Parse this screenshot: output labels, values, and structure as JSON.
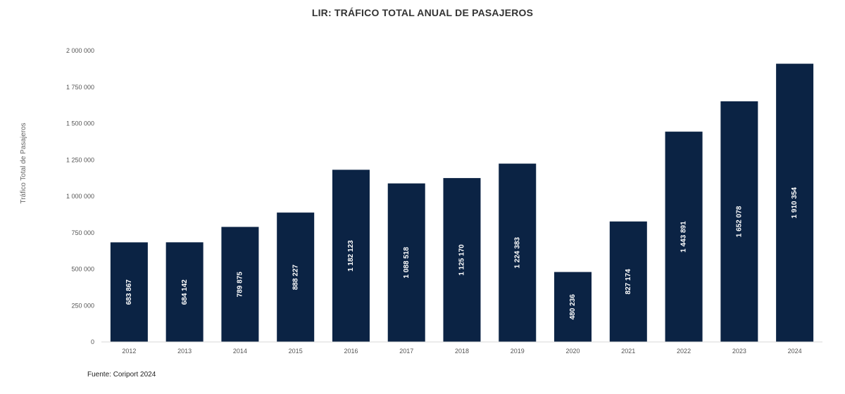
{
  "chart_data": {
    "type": "bar",
    "title": "LIR: TRÁFICO TOTAL ANUAL DE PASAJEROS",
    "xlabel": "",
    "ylabel": "Tráfico Total de Pasajeros",
    "categories": [
      "2012",
      "2013",
      "2014",
      "2015",
      "2016",
      "2017",
      "2018",
      "2019",
      "2020",
      "2021",
      "2022",
      "2023",
      "2024"
    ],
    "values": [
      683867,
      684142,
      789875,
      888227,
      1182123,
      1088518,
      1125170,
      1224383,
      480236,
      827174,
      1443891,
      1652078,
      1910354
    ],
    "value_labels": [
      "683 867",
      "684 142",
      "789 875",
      "888 227",
      "1 182 123",
      "1 088 518",
      "1 125 170",
      "1 224 383",
      "480 236",
      "827 174",
      "1 443 891",
      "1 652 078",
      "1 910 354"
    ],
    "yticks": [
      0,
      250000,
      500000,
      750000,
      1000000,
      1250000,
      1500000,
      1750000,
      2000000
    ],
    "ytick_labels": [
      "0",
      "250 000",
      "500 000",
      "750 000",
      "1 000 000",
      "1 250 000",
      "1 500 000",
      "1 750 000",
      "2 000 000"
    ],
    "ylim": [
      0,
      2000000
    ],
    "grid": false,
    "legend": "none",
    "bar_color": "#0b2344"
  },
  "footer": {
    "source": "Fuente: Coriport 2024"
  }
}
